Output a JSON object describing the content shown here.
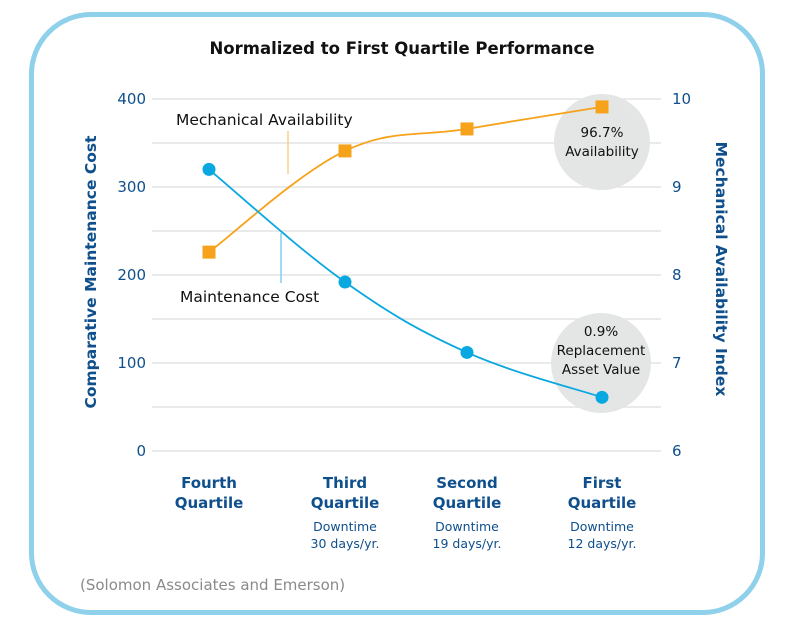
{
  "chart_data": {
    "type": "line",
    "title": "Normalized to First Quartile Performance",
    "categories": [
      "Fourth Quartile",
      "Third Quartile",
      "Second Quartile",
      "First Quartile"
    ],
    "category_lines": [
      [
        "Fourth",
        "Quartile"
      ],
      [
        "Third",
        "Quartile"
      ],
      [
        "Second",
        "Quartile"
      ],
      [
        "First",
        "Quartile"
      ]
    ],
    "category_sublabels": [
      [],
      [
        "Downtime",
        "30 days/yr."
      ],
      [
        "Downtime",
        "19 days/yr."
      ],
      [
        "Downtime",
        "12 days/yr."
      ]
    ],
    "y_left": {
      "label": "Comparative Maintenance Cost",
      "range": [
        0,
        400
      ],
      "ticks": [
        "0",
        "100",
        "200",
        "300",
        "400"
      ],
      "tick_values": [
        0,
        100,
        200,
        300,
        400
      ],
      "grid_step": 50
    },
    "y_right": {
      "label": "Mechanical Availability Index",
      "range": [
        6,
        10
      ],
      "ticks": [
        "6",
        "7",
        "8",
        "9",
        "10"
      ],
      "tick_values": [
        6,
        7,
        8,
        9,
        10
      ]
    },
    "series": [
      {
        "name": "Mechanical Availability",
        "axis": "right",
        "marker": "square",
        "color": "#f7a21b",
        "values": [
          8.26,
          9.41,
          9.66,
          9.91
        ]
      },
      {
        "name": "Maintenance Cost",
        "axis": "left",
        "marker": "circle",
        "color": "#0aa8e0",
        "values": [
          320,
          192,
          112,
          61
        ]
      }
    ],
    "annotations": [
      {
        "lines": [
          "96.7%",
          "Availability"
        ],
        "series": "Mechanical Availability",
        "category": "First Quartile"
      },
      {
        "lines": [
          "0.9%",
          "Replacement",
          "Asset Value"
        ],
        "series": "Maintenance Cost",
        "category": "First Quartile"
      }
    ],
    "grid": true,
    "legend": "inline-labels"
  },
  "source": "(Solomon Associates and Emerson)",
  "colors": {
    "frame": "#8fd0eb",
    "axis_text": "#0e4f8c",
    "grid": "#e3e3e3",
    "bubble": "#e4e5e5"
  }
}
